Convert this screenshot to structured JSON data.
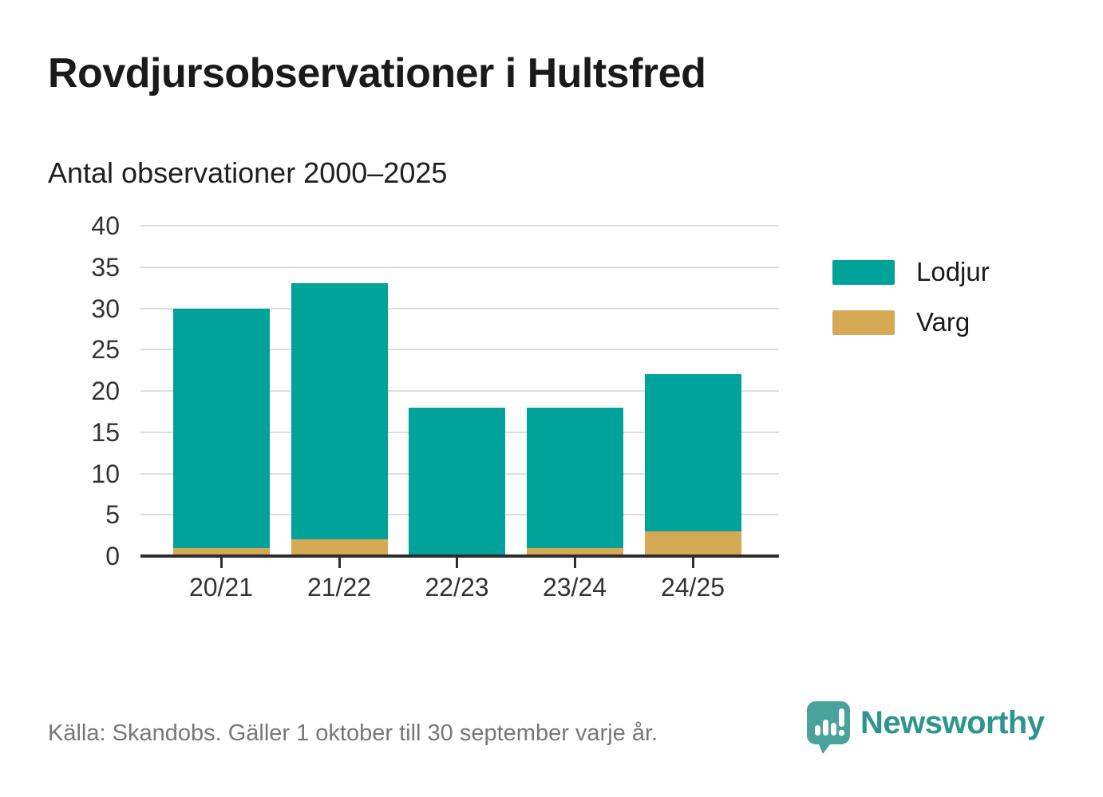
{
  "header": {
    "title": "Rovdjursobservationer i Hultsfred",
    "subtitle": "Antal observationer 2000–2025"
  },
  "chart_data": {
    "type": "bar",
    "stacked": true,
    "title": "Rovdjursobservationer i Hultsfred",
    "subtitle": "Antal observationer 2000–2025",
    "categories": [
      "20/21",
      "21/22",
      "22/23",
      "23/24",
      "24/25"
    ],
    "series": [
      {
        "name": "Varg",
        "color": "#d6a954",
        "values": [
          1,
          2,
          0,
          1,
          3
        ]
      },
      {
        "name": "Lodjur",
        "color": "#00a39a",
        "values": [
          29,
          31,
          18,
          17,
          19
        ]
      }
    ],
    "totals": [
      30,
      33,
      18,
      18,
      22
    ],
    "xlabel": "",
    "ylabel": "",
    "ylim": [
      0,
      40
    ],
    "ytick_step": 5,
    "yticks": [
      0,
      5,
      10,
      15,
      20,
      25,
      30,
      35,
      40
    ],
    "grid": true,
    "gridline_color": "#dedede",
    "axis_color": "#2e2e2e",
    "legend_position": "right",
    "legend_order": [
      "Lodjur",
      "Varg"
    ]
  },
  "legend": {
    "items": [
      {
        "label": "Lodjur",
        "color": "#00a39a"
      },
      {
        "label": "Varg",
        "color": "#d6a954"
      }
    ]
  },
  "footer": {
    "source": "Källa: Skandobs. Gäller 1 oktober till 30 september varje år.",
    "brand": "Newsworthy",
    "brand_color": "#2d948e",
    "icon_color": "#49a29c"
  }
}
